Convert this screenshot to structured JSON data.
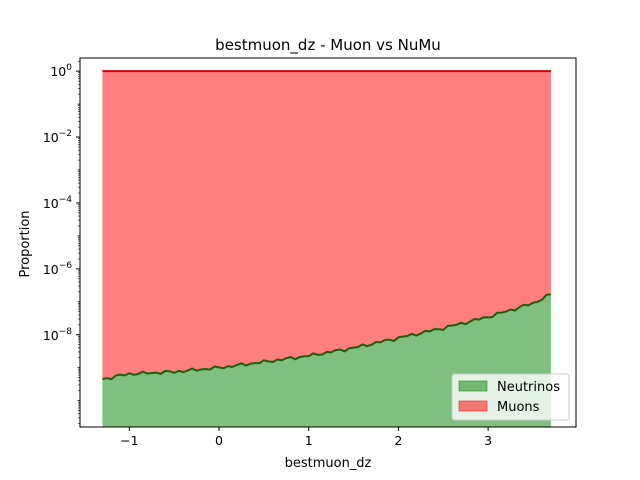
{
  "chart_data": {
    "type": "area",
    "title": "bestmuon_dz - Muon vs NuMu",
    "xlabel": "bestmuon_dz",
    "ylabel": "Proportion",
    "yscale": "log",
    "xlim": [
      -1.55,
      3.98
    ],
    "ylim_log10": [
      -10.8,
      0.4
    ],
    "xticks": [
      -1,
      0,
      1,
      2,
      3
    ],
    "xtick_labels": [
      "−1",
      "0",
      "1",
      "2",
      "3"
    ],
    "yticks_log10": [
      0,
      -2,
      -4,
      -6,
      -8
    ],
    "ytick_labels": [
      {
        "base": "10",
        "exp": "0"
      },
      {
        "base": "10",
        "exp": "−2"
      },
      {
        "base": "10",
        "exp": "−4"
      },
      {
        "base": "10",
        "exp": "−6"
      },
      {
        "base": "10",
        "exp": "−8"
      }
    ],
    "x": [
      -1.3,
      -1.0,
      -0.5,
      0.0,
      0.5,
      1.0,
      1.5,
      2.0,
      2.5,
      3.0,
      3.5,
      3.7
    ],
    "series": [
      {
        "name": "Neutrinos",
        "color": "#008000",
        "values": [
          4.5e-10,
          6.5e-10,
          7.5e-10,
          1e-09,
          1.5e-09,
          2.3e-09,
          4e-09,
          8e-09,
          1.6e-08,
          3.5e-08,
          9e-08,
          1.7e-07
        ]
      },
      {
        "name": "Muons",
        "color": "#ff0000",
        "values": [
          0.99999999955,
          0.99999999935,
          0.99999999925,
          0.999999999,
          0.9999999985,
          0.9999999977,
          0.999999996,
          0.999999992,
          0.999999984,
          0.999999965,
          0.99999991,
          0.99999983
        ]
      }
    ],
    "legend": {
      "placement": "lower-right",
      "entries": [
        "Neutrinos",
        "Muons"
      ]
    },
    "grid": false
  }
}
